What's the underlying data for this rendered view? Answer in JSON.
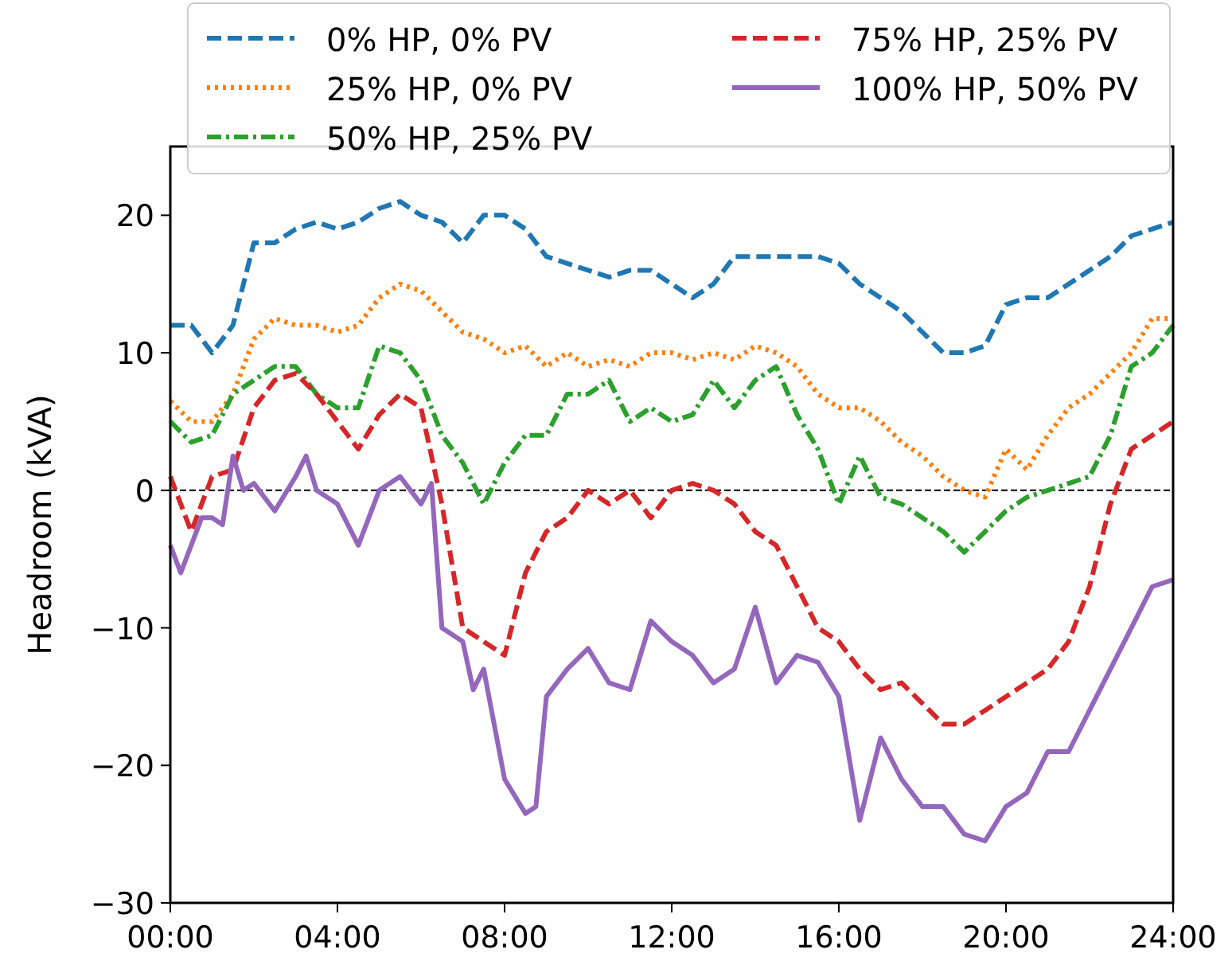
{
  "chart_data": {
    "type": "line",
    "ylabel": "Headroom (kVA)",
    "xlim": [
      0,
      24
    ],
    "ylim": [
      -30,
      25
    ],
    "xticks": [
      {
        "value": 0,
        "label": "00:00"
      },
      {
        "value": 4,
        "label": "04:00"
      },
      {
        "value": 8,
        "label": "08:00"
      },
      {
        "value": 12,
        "label": "12:00"
      },
      {
        "value": 16,
        "label": "16:00"
      },
      {
        "value": 20,
        "label": "20:00"
      },
      {
        "value": 24,
        "label": "24:00"
      }
    ],
    "yticks": [
      {
        "value": -30,
        "label": "−30"
      },
      {
        "value": -20,
        "label": "−20"
      },
      {
        "value": -10,
        "label": "−10"
      },
      0,
      10,
      20
    ],
    "grid": false,
    "legend": "top",
    "marker": "none",
    "ref_lines": [
      {
        "axis": "y",
        "value": 0,
        "color": "#000000",
        "line_style": "dashed"
      }
    ],
    "x": [
      0,
      0.5,
      1,
      1.5,
      2,
      2.5,
      3,
      3.5,
      4,
      4.5,
      5,
      5.5,
      6,
      6.5,
      7,
      7.5,
      8,
      8.5,
      9,
      9.5,
      10,
      10.5,
      11,
      11.5,
      12,
      12.5,
      13,
      13.5,
      14,
      14.5,
      15,
      15.5,
      16,
      16.5,
      17,
      17.5,
      18,
      18.5,
      19,
      19.5,
      20,
      20.5,
      21,
      21.5,
      22,
      22.5,
      23,
      23.5,
      24
    ],
    "series": [
      {
        "name": "0% HP, 0% PV",
        "color": "#1f77b4",
        "line_style": "dashed",
        "values": [
          12,
          12,
          10,
          12,
          18,
          18,
          19,
          19.5,
          19,
          19.5,
          20.5,
          21,
          20,
          19.5,
          18,
          20,
          20,
          19,
          17,
          16.5,
          16,
          15.5,
          16,
          16,
          15,
          14,
          15,
          17,
          17,
          17,
          17,
          17,
          16.5,
          15,
          14,
          13,
          11.5,
          10,
          10,
          10.5,
          13.5,
          14,
          14,
          15,
          16,
          17,
          18.5,
          19,
          19.5
        ]
      },
      {
        "name": "25% HP, 0% PV",
        "color": "#ff7f0e",
        "line_style": "dotted",
        "values": [
          6.5,
          5,
          5,
          7,
          11,
          12.5,
          12,
          12,
          11.5,
          12,
          14,
          15,
          14.5,
          13,
          11.5,
          11,
          10,
          10.5,
          9,
          10,
          9,
          9.5,
          9,
          10,
          10,
          9.5,
          10,
          9.5,
          10.5,
          10,
          9,
          7,
          6,
          6,
          5,
          3.5,
          2.5,
          1,
          0,
          -0.5,
          3,
          1.5,
          4,
          6,
          7,
          8.5,
          10,
          12.5,
          12.5
        ]
      },
      {
        "name": "50% HP, 25% PV",
        "color": "#2ca02c",
        "line_style": "dashdot",
        "values": [
          5,
          3.5,
          4,
          7,
          8,
          9,
          9,
          7,
          6,
          6,
          10.5,
          10,
          8,
          4,
          2,
          -1,
          2,
          4,
          4,
          7,
          7,
          8,
          5,
          6,
          5,
          5.5,
          8,
          6,
          8,
          9,
          5.5,
          3,
          -1,
          2.5,
          -0.5,
          -1,
          -2,
          -3,
          -4.5,
          -3,
          -1.5,
          -0.5,
          0,
          0.5,
          1,
          4,
          9,
          10,
          12
        ]
      },
      {
        "name": "75% HP, 25% PV",
        "color": "#d62728",
        "line_style": "dashed",
        "values": [
          1,
          -3,
          1,
          1.5,
          6,
          8,
          8.5,
          7,
          5,
          3,
          5.5,
          7,
          6,
          -1,
          -10,
          -11,
          -12,
          -6,
          -3,
          -2,
          0,
          -1,
          0,
          -2,
          0,
          0.5,
          0,
          -1,
          -3,
          -4,
          -7,
          -10,
          -11,
          -13,
          -14.5,
          -14,
          -15.5,
          -17,
          -17,
          -16,
          -15,
          -14,
          -13,
          -11,
          -7,
          -1,
          3,
          4,
          5
        ]
      },
      {
        "name": "100% HP, 50% PV",
        "color": "#9467bd",
        "line_style": "solid",
        "x": [
          0,
          0.25,
          0.5,
          0.75,
          1,
          1.25,
          1.5,
          1.75,
          2,
          2.5,
          3,
          3.25,
          3.5,
          4,
          4.5,
          5,
          5.5,
          6,
          6.25,
          6.5,
          7,
          7.25,
          7.5,
          8,
          8.5,
          8.75,
          9,
          9.5,
          10,
          10.5,
          11,
          11.5,
          12,
          12.5,
          13,
          13.5,
          14,
          14.5,
          15,
          15.5,
          16,
          16.5,
          17,
          17.5,
          18,
          18.5,
          19,
          19.5,
          20,
          20.5,
          21,
          21.5,
          22,
          22.5,
          23,
          23.5,
          24
        ],
        "values": [
          -4,
          -6,
          -4,
          -2,
          -2,
          -2.5,
          2.5,
          0,
          0.5,
          -1.5,
          1,
          2.5,
          0,
          -1,
          -4,
          0,
          1,
          -1,
          0.5,
          -10,
          -11,
          -14.5,
          -13,
          -21,
          -23.5,
          -23,
          -15,
          -13,
          -11.5,
          -14,
          -14.5,
          -9.5,
          -11,
          -12,
          -14,
          -13,
          -8.5,
          -14,
          -12,
          -12.5,
          -15,
          -24,
          -18,
          -21,
          -23,
          -23,
          -25,
          -25.5,
          -23,
          -22,
          -19,
          -19,
          -16,
          -13,
          -10,
          -7,
          -6.5
        ]
      }
    ]
  }
}
